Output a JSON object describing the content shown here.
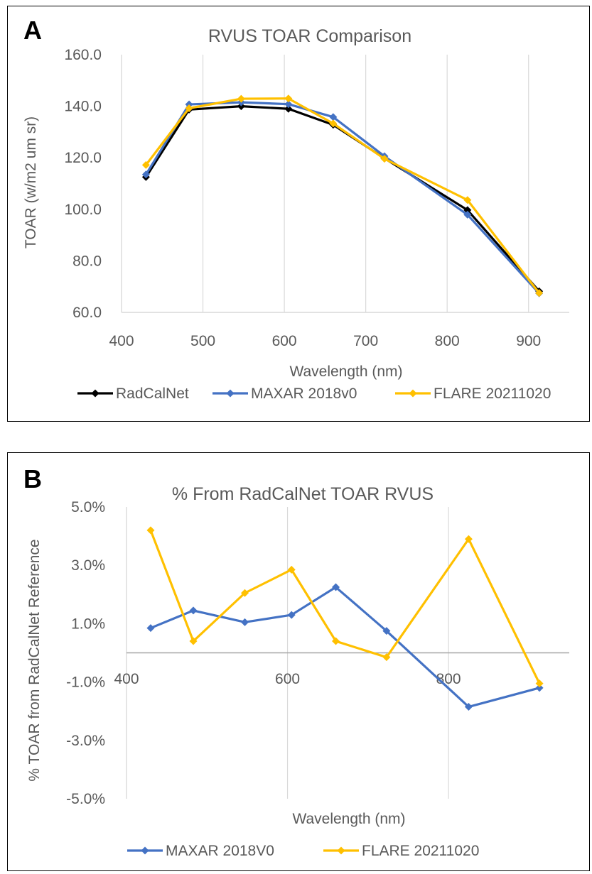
{
  "colors": {
    "radcalnet": "#000000",
    "maxar": "#4472C4",
    "flare": "#FFC000",
    "grid": "#d9d9d9",
    "text": "#595959"
  },
  "chart_data": [
    {
      "panel_letter": "A",
      "type": "line",
      "title": "RVUS TOAR Comparison",
      "xlabel": "Wavelength (nm)",
      "ylabel": "TOAR (w/m2 um sr)",
      "xlim": [
        400,
        950
      ],
      "ylim": [
        60,
        160
      ],
      "xticks": [
        400,
        500,
        600,
        700,
        800,
        900
      ],
      "xtick_labels": [
        "400",
        "500",
        "600",
        "700",
        "800",
        "900"
      ],
      "yticks": [
        60,
        80,
        100,
        120,
        140,
        160
      ],
      "ytick_labels": [
        "60.0",
        "80.0",
        "100.0",
        "120.0",
        "140.0",
        "160.0"
      ],
      "grid": "vertical",
      "legend": "bottom",
      "x": [
        430,
        483,
        547,
        605,
        660,
        723,
        825,
        913
      ],
      "series": [
        {
          "name": "RadCalNet",
          "color_key": "radcalnet",
          "values": [
            112.5,
            138.7,
            140.0,
            139.0,
            132.8,
            119.8,
            99.7,
            68.2
          ]
        },
        {
          "name": "MAXAR 2018v0",
          "color_key": "maxar",
          "values": [
            113.5,
            140.7,
            141.5,
            140.8,
            135.8,
            120.6,
            97.9,
            67.4
          ]
        },
        {
          "name": "FLARE 20211020",
          "color_key": "flare",
          "values": [
            117.2,
            139.2,
            142.9,
            143.0,
            133.3,
            119.6,
            103.6,
            67.5
          ]
        }
      ]
    },
    {
      "panel_letter": "B",
      "type": "line",
      "title": "% From RadCalNet TOAR RVUS",
      "xlabel": "Wavelength (nm)",
      "ylabel": "% TOAR from RadCalNet Reference",
      "xlim": [
        400,
        950
      ],
      "ylim": [
        -5,
        5
      ],
      "xticks": [
        400,
        600,
        800
      ],
      "xtick_labels": [
        "400",
        "600",
        "800"
      ],
      "yticks": [
        -5,
        -3,
        -1,
        1,
        3,
        5
      ],
      "ytick_labels": [
        "-5.0%",
        "-3.0%",
        "-1.0%",
        "1.0%",
        "3.0%",
        "5.0%"
      ],
      "grid": "vertical",
      "legend": "bottom",
      "x": [
        430,
        483,
        547,
        605,
        660,
        723,
        825,
        913
      ],
      "series": [
        {
          "name": "MAXAR 2018V0",
          "color_key": "maxar",
          "values": [
            0.85,
            1.45,
            1.05,
            1.3,
            2.25,
            0.75,
            -1.85,
            -1.2
          ]
        },
        {
          "name": "FLARE 20211020",
          "color_key": "flare",
          "values": [
            4.2,
            0.4,
            2.05,
            2.85,
            0.4,
            -0.15,
            3.9,
            -1.05
          ]
        }
      ]
    }
  ]
}
